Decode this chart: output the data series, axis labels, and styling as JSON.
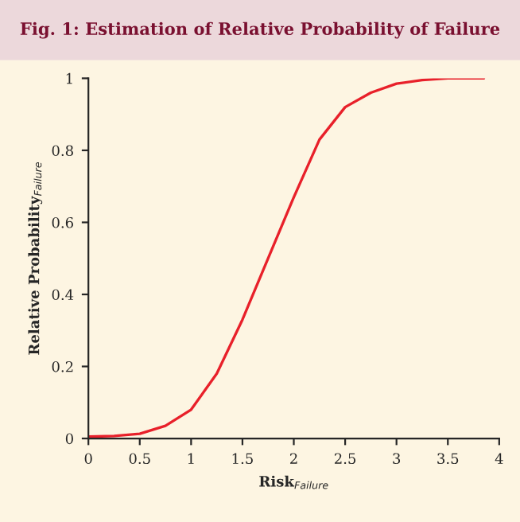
{
  "chart_data": {
    "type": "line",
    "title": "Fig. 1: Estimation of Relative Probability of Failure",
    "xlabel": "Risk$_{Failure}$",
    "ylabel": "Relative Probability$_{Failure}$",
    "series": [
      {
        "color": "#e8202a",
        "x": [
          0,
          0.25,
          0.5,
          0.75,
          1,
          1.25,
          1.5,
          1.75,
          2,
          2.25,
          2.5,
          2.75,
          3,
          3.25,
          3.5,
          3.75,
          3.85
        ],
        "values": [
          0.005,
          0.007,
          0.013,
          0.035,
          0.08,
          0.18,
          0.33,
          0.5,
          0.67,
          0.83,
          0.92,
          0.96,
          0.985,
          0.995,
          1.0,
          1.0,
          1.0
        ]
      }
    ],
    "xlim": [
      0,
      4
    ],
    "ylim": [
      0,
      1
    ],
    "xticks": [
      0,
      0.5,
      1,
      1.5,
      2,
      2.5,
      3,
      3.5,
      4
    ],
    "yticks": [
      0,
      0.2,
      0.4,
      0.6,
      0.8,
      1
    ],
    "grid": false,
    "marker": "none",
    "line_style": "solid"
  }
}
